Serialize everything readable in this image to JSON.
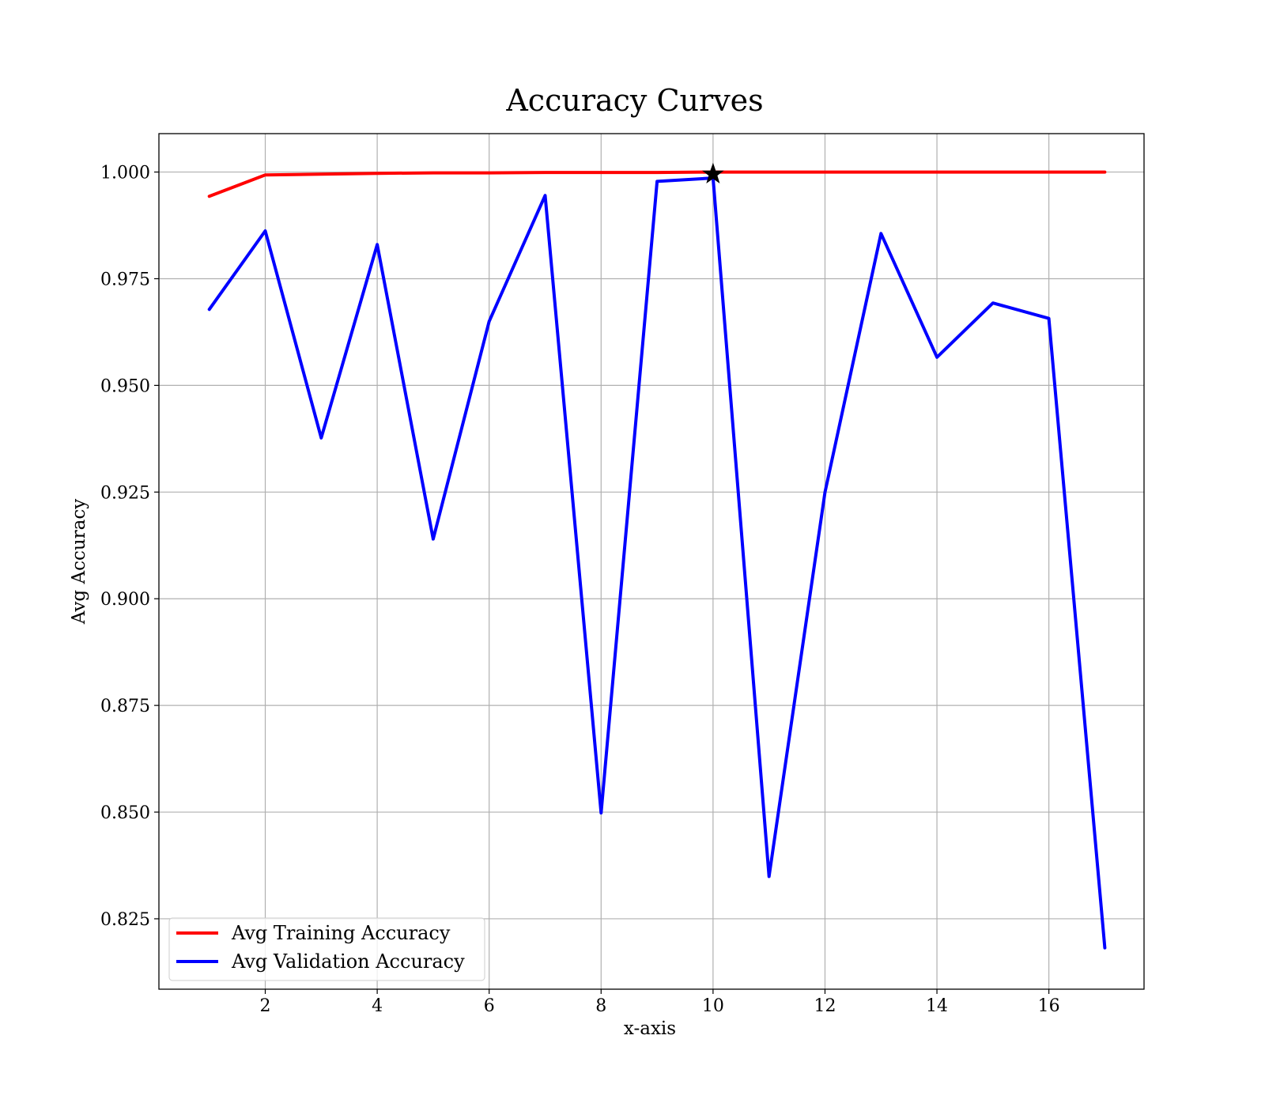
{
  "chart_data": {
    "type": "line",
    "title": "Accuracy Curves",
    "xlabel": "x-axis",
    "ylabel": "Avg Accuracy",
    "xlim": [
      0.1,
      17.7
    ],
    "ylim": [
      0.8085,
      1.009
    ],
    "xticks": [
      2,
      4,
      6,
      8,
      10,
      12,
      14,
      16
    ],
    "yticks": [
      0.825,
      0.85,
      0.875,
      0.9,
      0.925,
      0.95,
      0.975,
      1.0
    ],
    "ytick_labels": [
      "0.825",
      "0.850",
      "0.875",
      "0.900",
      "0.925",
      "0.950",
      "0.975",
      "1.000"
    ],
    "grid": true,
    "legend_position": "lower-left",
    "x": [
      1,
      2,
      3,
      4,
      5,
      6,
      7,
      8,
      9,
      10,
      11,
      12,
      13,
      14,
      15,
      16,
      17
    ],
    "series": [
      {
        "name": "Avg Training Accuracy",
        "color": "#ff0000",
        "values": [
          0.9943,
          0.9993,
          0.9995,
          0.9997,
          0.9998,
          0.9998,
          0.9999,
          0.9999,
          0.9999,
          1.0,
          1.0,
          1.0,
          1.0,
          1.0,
          1.0,
          1.0,
          1.0
        ]
      },
      {
        "name": "Avg Validation Accuracy",
        "color": "#0000ff",
        "values": [
          0.9678,
          0.9862,
          0.9377,
          0.983,
          0.914,
          0.965,
          0.9945,
          0.8498,
          0.9978,
          0.9986,
          0.8349,
          0.925,
          0.9856,
          0.9566,
          0.9693,
          0.9657,
          0.8182
        ]
      }
    ],
    "marker": {
      "type": "star",
      "x": 10,
      "y": 0.9995,
      "color": "#000000"
    }
  }
}
